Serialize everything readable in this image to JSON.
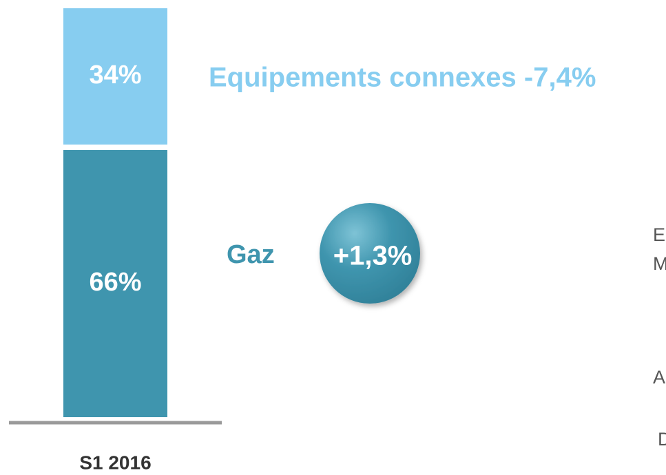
{
  "chart_data": {
    "type": "stacked-bar",
    "categories": [
      "S1 2016"
    ],
    "series": [
      {
        "name": "Gaz",
        "color": "#3f95ae",
        "values": [
          66
        ],
        "value_labels": [
          "66%"
        ],
        "change": "+1,3%"
      },
      {
        "name": "Equipements connexes -7,4%",
        "color": "#87cdf0",
        "values": [
          34
        ],
        "value_labels": [
          "34%"
        ]
      }
    ],
    "annotations": [
      "E",
      "M",
      "A",
      "D"
    ]
  }
}
